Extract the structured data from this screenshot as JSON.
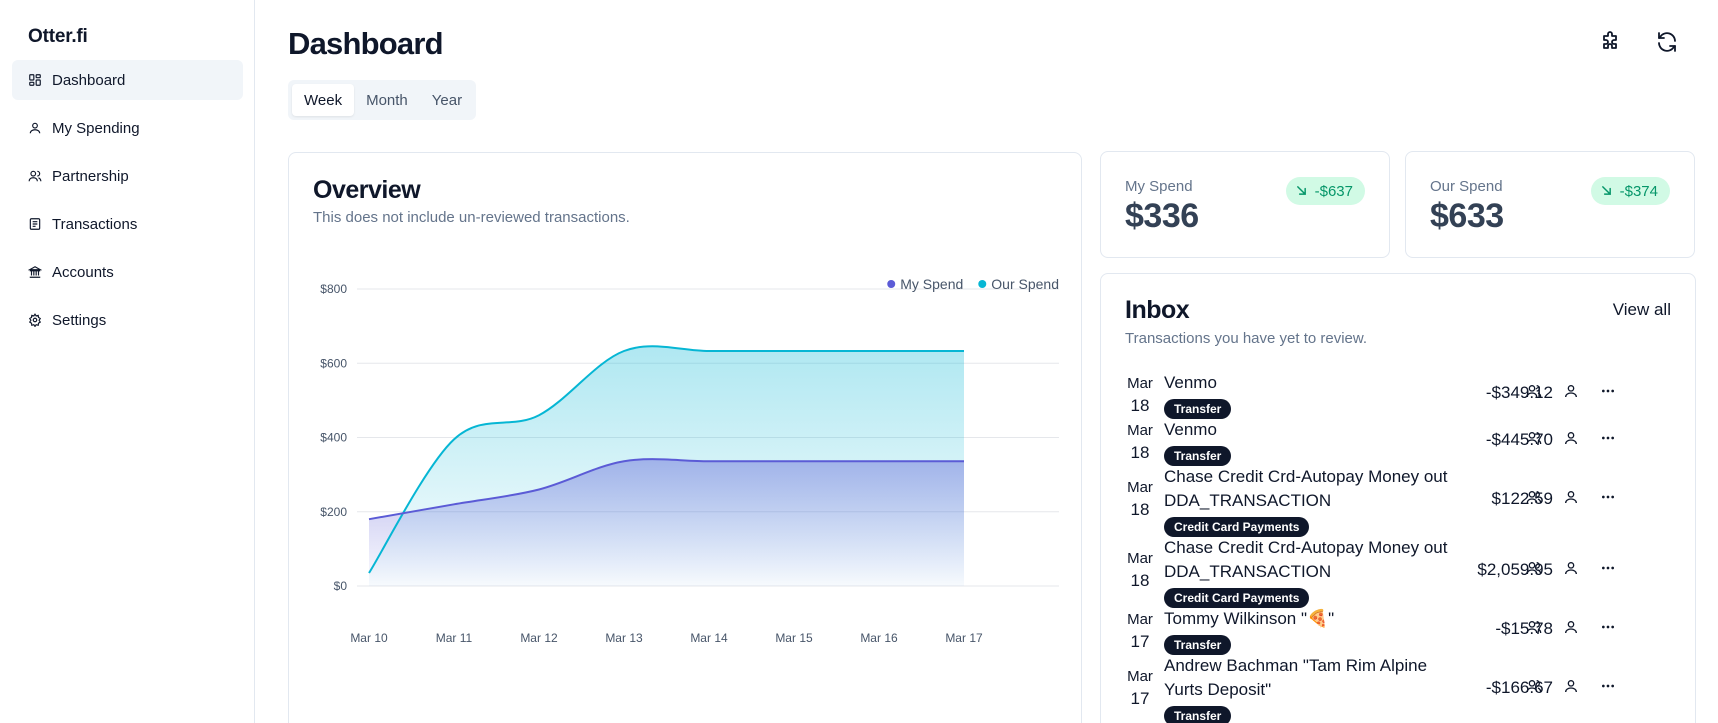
{
  "app": {
    "brand": "Otter.fi"
  },
  "sidebar": {
    "items": [
      {
        "label": "Dashboard",
        "icon": "dashboard-icon",
        "active": true
      },
      {
        "label": "My Spending",
        "icon": "user-icon"
      },
      {
        "label": "Partnership",
        "icon": "users-icon"
      },
      {
        "label": "Transactions",
        "icon": "receipt-icon"
      },
      {
        "label": "Accounts",
        "icon": "bank-icon"
      },
      {
        "label": "Settings",
        "icon": "gear-icon"
      }
    ]
  },
  "header": {
    "title": "Dashboard",
    "actions": [
      {
        "icon": "puzzle-icon"
      },
      {
        "icon": "refresh-icon"
      }
    ]
  },
  "range_tabs": {
    "items": [
      "Week",
      "Month",
      "Year"
    ],
    "selected": "Week"
  },
  "overview": {
    "title": "Overview",
    "subtitle": "This does not include un-reviewed transactions."
  },
  "chart_data": {
    "type": "area",
    "x": [
      "Mar 10",
      "Mar 11",
      "Mar 12",
      "Mar 13",
      "Mar 14",
      "Mar 15",
      "Mar 16",
      "Mar 17"
    ],
    "yticks": [
      "$0",
      "$200",
      "$400",
      "$600",
      "$800"
    ],
    "ylim": [
      0,
      800
    ],
    "grid": true,
    "legend_position": "top-right",
    "series": [
      {
        "name": "My Spend",
        "color": "#5b5bd6",
        "values": [
          180,
          220,
          260,
          336,
          336,
          336,
          336,
          336
        ]
      },
      {
        "name": "Our Spend",
        "color": "#06b6d4",
        "values": [
          35,
          395,
          460,
          633,
          633,
          633,
          633,
          633
        ]
      }
    ]
  },
  "stats": [
    {
      "label": "My Spend",
      "value": "$336",
      "change": "-$637",
      "trend_icon": "arrow-down-right-icon"
    },
    {
      "label": "Our Spend",
      "value": "$633",
      "change": "-$374",
      "trend_icon": "arrow-down-right-icon"
    }
  ],
  "inbox": {
    "title": "Inbox",
    "subtitle": "Transactions you have yet to review.",
    "view_all": "View all",
    "transactions": [
      {
        "month": "Mar",
        "day": "18",
        "name": "Venmo",
        "category": "Transfer",
        "amount": "-$349.12"
      },
      {
        "month": "Mar",
        "day": "18",
        "name": "Venmo",
        "category": "Transfer",
        "amount": "-$445.70"
      },
      {
        "month": "Mar",
        "day": "18",
        "name": "Chase Credit Crd-Autopay Money out DDA_TRANSACTION",
        "category": "Credit Card Payments",
        "amount": "$122.59"
      },
      {
        "month": "Mar",
        "day": "18",
        "name": "Chase Credit Crd-Autopay Money out DDA_TRANSACTION",
        "category": "Credit Card Payments",
        "amount": "$2,059.95"
      },
      {
        "month": "Mar",
        "day": "17",
        "name": "Tommy Wilkinson \"🍕\"",
        "category": "Transfer",
        "amount": "-$15.78"
      },
      {
        "month": "Mar",
        "day": "17",
        "name": "Andrew Bachman \"Tam Rim Alpine Yurts Deposit\"",
        "category": "Transfer",
        "amount": "-$166.67"
      }
    ]
  }
}
